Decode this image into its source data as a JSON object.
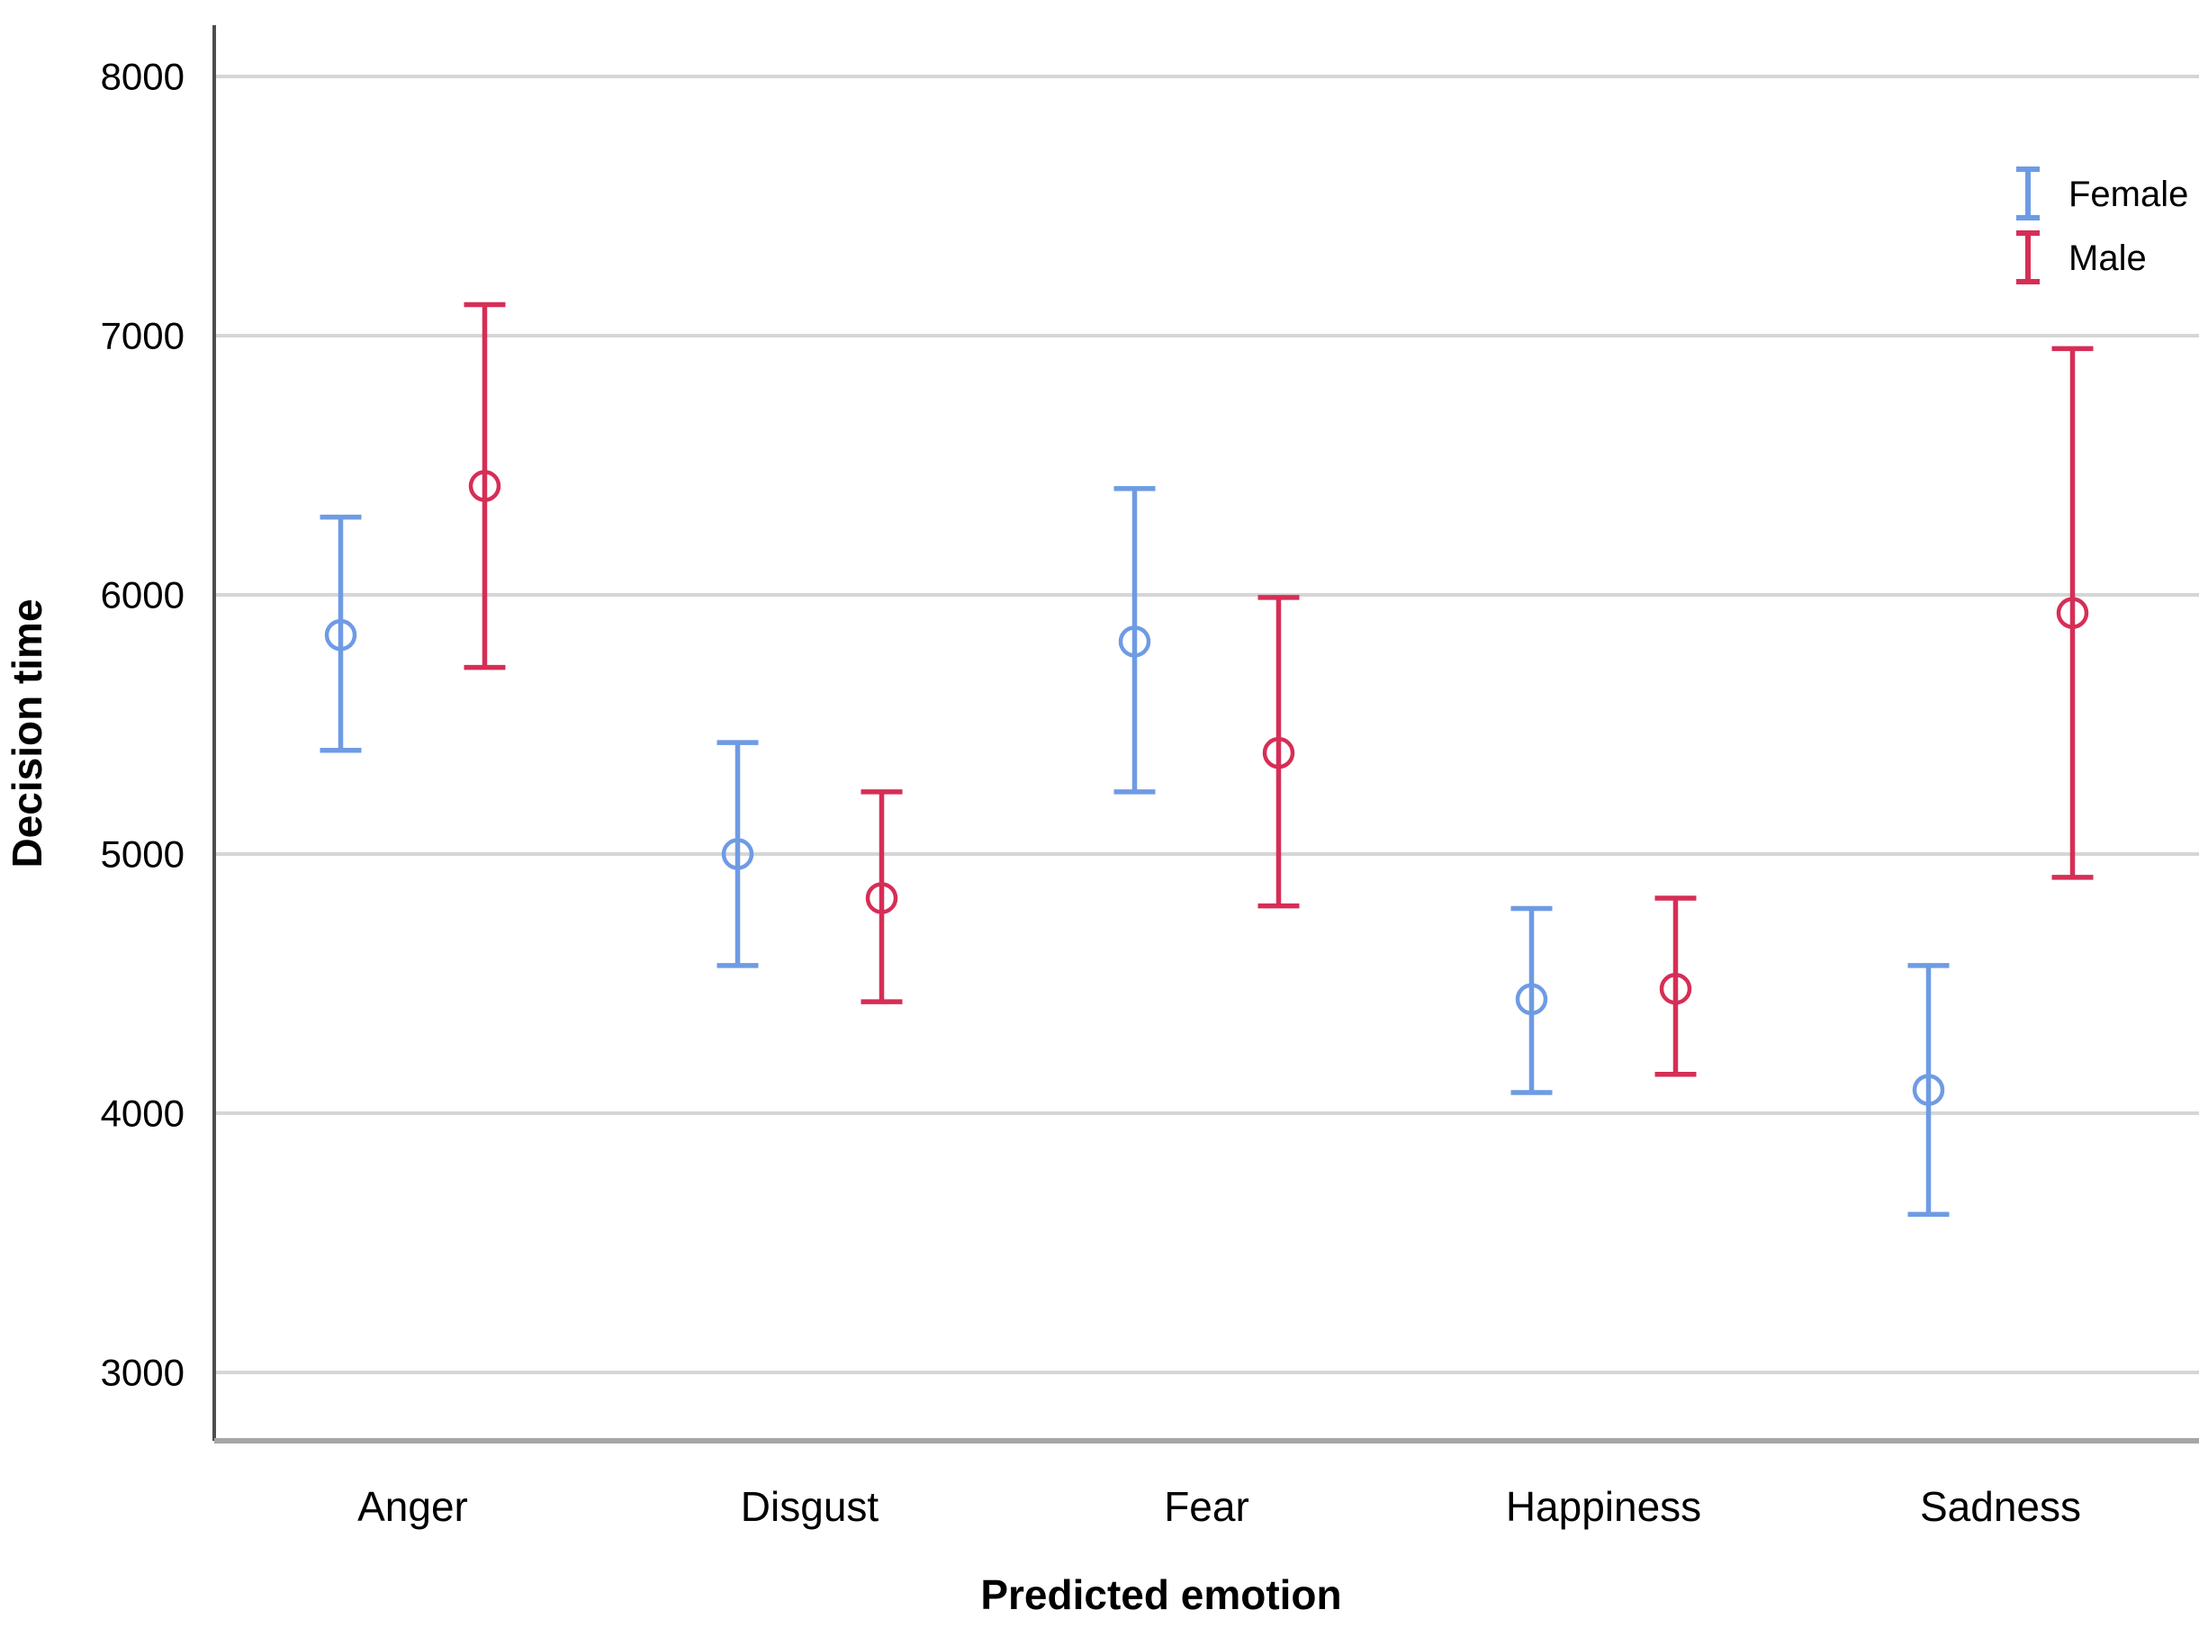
{
  "chart_data": {
    "type": "errorbar",
    "title": "",
    "xlabel": "Predicted emotion",
    "ylabel": "Decision time",
    "categories": [
      "Anger",
      "Disgust",
      "Fear",
      "Happiness",
      "Sadness"
    ],
    "y_ticks": [
      3000,
      4000,
      5000,
      6000,
      7000,
      8000
    ],
    "ylim": [
      2740,
      8200
    ],
    "grid": "horizontal-only",
    "legend": {
      "position": "top-right",
      "items": [
        {
          "label": "Female",
          "color": "#6E9BE4"
        },
        {
          "label": "Male",
          "color": "#D62E56"
        }
      ]
    },
    "marker": "open-circle",
    "series": [
      {
        "name": "Female",
        "color": "#6E9BE4",
        "points": [
          {
            "category": "Anger",
            "mean": 5845,
            "ci_low": 5400,
            "ci_high": 6300
          },
          {
            "category": "Disgust",
            "mean": 5000,
            "ci_low": 4570,
            "ci_high": 5430
          },
          {
            "category": "Fear",
            "mean": 5820,
            "ci_low": 5240,
            "ci_high": 6410
          },
          {
            "category": "Happiness",
            "mean": 4440,
            "ci_low": 4080,
            "ci_high": 4790
          },
          {
            "category": "Sadness",
            "mean": 4090,
            "ci_low": 3610,
            "ci_high": 4570
          }
        ]
      },
      {
        "name": "Male",
        "color": "#D62E56",
        "points": [
          {
            "category": "Anger",
            "mean": 6420,
            "ci_low": 5720,
            "ci_high": 7120
          },
          {
            "category": "Disgust",
            "mean": 4830,
            "ci_low": 4430,
            "ci_high": 5240
          },
          {
            "category": "Fear",
            "mean": 5390,
            "ci_low": 4800,
            "ci_high": 5990
          },
          {
            "category": "Happiness",
            "mean": 4480,
            "ci_low": 4150,
            "ci_high": 4830
          },
          {
            "category": "Sadness",
            "mean": 5930,
            "ci_low": 4910,
            "ci_high": 6950
          }
        ]
      }
    ],
    "colors": {
      "gridline": "#D6D6D6",
      "plot_bottom_border": "#A6A6A6",
      "y_axis_line": "#4D4D4D",
      "text": "#000000"
    }
  }
}
